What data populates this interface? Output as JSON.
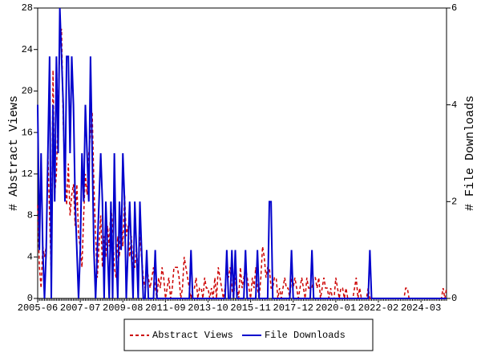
{
  "chart_data": {
    "type": "line",
    "y_label": "# Abstract Views",
    "y2_label": "# File Downloads",
    "categories": [
      "2005-06",
      null,
      null,
      null,
      null,
      null,
      null,
      null,
      null,
      null,
      null,
      null,
      null,
      null,
      null,
      null,
      null,
      null,
      null,
      null,
      null,
      null,
      null,
      null,
      null,
      "2007-07",
      null,
      null,
      null,
      null,
      null,
      null,
      null,
      null,
      null,
      null,
      null,
      null,
      null,
      null,
      null,
      null,
      null,
      null,
      null,
      null,
      null,
      null,
      null,
      null,
      "2009-08",
      null,
      null,
      null,
      null,
      null,
      null,
      null,
      null,
      null,
      null,
      null,
      null,
      null,
      null,
      null,
      null,
      null,
      null,
      null,
      null,
      null,
      null,
      null,
      null,
      "2011-09",
      null,
      null,
      null,
      null,
      null,
      null,
      null,
      null,
      null,
      null,
      null,
      null,
      null,
      null,
      null,
      null,
      null,
      null,
      null,
      null,
      null,
      null,
      null,
      null,
      "2013-10",
      null,
      null,
      null,
      null,
      null,
      null,
      null,
      null,
      null,
      null,
      null,
      null,
      null,
      null,
      null,
      null,
      null,
      null,
      null,
      null,
      null,
      null,
      null,
      null,
      "2015-11",
      null,
      null,
      null,
      null,
      null,
      null,
      null,
      null,
      null,
      null,
      null,
      null,
      null,
      null,
      null,
      null,
      null,
      null,
      null,
      null,
      null,
      null,
      null,
      null,
      "2017-12",
      null,
      null,
      null,
      null,
      null,
      null,
      null,
      null,
      null,
      null,
      null,
      null,
      null,
      null,
      null,
      null,
      null,
      null,
      null,
      null,
      null,
      null,
      null,
      null,
      "2020-01",
      null,
      null,
      null,
      null,
      null,
      null,
      null,
      null,
      null,
      null,
      null,
      null,
      null,
      null,
      null,
      null,
      null,
      null,
      null,
      null,
      null,
      null,
      null,
      null,
      "2022-02",
      null,
      null,
      null,
      null,
      null,
      null,
      null,
      null,
      null,
      null,
      null,
      null,
      null,
      null,
      null,
      null,
      null,
      null,
      null,
      null,
      null,
      null,
      null,
      null,
      "2024-03",
      null,
      null,
      null,
      null,
      null,
      null,
      null,
      null,
      null,
      null,
      null,
      null,
      null,
      null,
      null
    ],
    "series": [
      {
        "name": "Abstract Views",
        "color": "#cc0000",
        "dashed": true,
        "values": [
          9,
          3,
          1,
          5,
          4,
          5,
          14,
          8,
          2,
          22,
          10,
          12,
          18,
          25,
          26,
          17,
          12,
          9,
          13,
          8,
          10,
          11,
          7,
          11,
          6,
          5,
          3,
          8,
          12,
          10,
          14,
          16,
          18,
          11,
          6,
          2,
          5,
          8,
          3,
          6,
          4,
          7,
          5,
          9,
          7,
          3,
          2,
          6,
          4,
          8,
          5,
          10,
          6,
          7,
          4,
          6,
          3,
          3,
          5,
          2,
          6,
          4,
          2,
          1,
          3,
          2,
          1,
          2,
          3,
          1,
          0,
          2,
          1,
          3,
          2,
          0,
          1,
          2,
          0,
          1,
          3,
          3,
          3,
          2,
          0,
          1,
          4,
          3,
          2,
          1,
          0,
          1,
          1,
          2,
          0,
          1,
          1,
          0,
          2,
          1,
          1,
          0,
          1,
          0,
          2,
          0,
          3,
          2,
          1,
          0,
          1,
          3,
          2,
          3,
          1,
          0,
          2,
          1,
          0,
          3,
          1,
          2,
          3,
          2,
          1,
          0,
          2,
          1,
          3,
          1,
          0,
          2,
          5,
          4,
          2,
          3,
          3,
          1,
          1,
          2,
          2,
          0,
          1,
          0,
          1,
          2,
          1,
          1,
          0,
          2,
          1,
          2,
          1,
          0,
          1,
          2,
          1,
          0,
          2,
          1,
          1,
          1,
          2,
          2,
          1,
          2,
          0,
          1,
          2,
          1,
          1,
          0,
          1,
          0,
          0,
          2,
          1,
          0,
          1,
          1,
          0,
          1,
          0,
          0,
          0,
          0,
          1,
          2,
          0,
          1,
          0,
          0,
          0,
          0,
          1,
          0,
          0,
          0,
          0,
          0,
          0,
          0,
          0,
          0,
          0,
          0,
          0,
          0,
          0,
          0,
          0,
          0,
          0,
          0,
          0,
          0,
          1,
          1,
          0,
          0,
          0,
          0,
          0,
          0,
          0,
          0,
          0,
          0,
          0,
          0,
          0,
          0,
          0,
          0,
          0,
          0,
          0,
          0,
          1,
          0,
          1
        ]
      },
      {
        "name": "File Downloads",
        "color": "#0000cc",
        "axis": "y2",
        "values": [
          4,
          1,
          3,
          1,
          0,
          1,
          3,
          5,
          0,
          4,
          2,
          5,
          3,
          6,
          5,
          4,
          2,
          5,
          5,
          3,
          5,
          4,
          2,
          1,
          0,
          1,
          3,
          2,
          4,
          3,
          2,
          5,
          3,
          1,
          0,
          1,
          2,
          3,
          2,
          0,
          2,
          1,
          0,
          2,
          0,
          3,
          1,
          0,
          2,
          1,
          3,
          2,
          0,
          1,
          2,
          1,
          0,
          2,
          1,
          0,
          2,
          1,
          0,
          0,
          1,
          0,
          0,
          0,
          0,
          1,
          0,
          0,
          0,
          0,
          0,
          0,
          0,
          0,
          0,
          0,
          0,
          0,
          0,
          0,
          0,
          0,
          0,
          0,
          0,
          0,
          1,
          0,
          0,
          0,
          0,
          0,
          0,
          0,
          0,
          0,
          0,
          0,
          0,
          0,
          0,
          0,
          0,
          0,
          0,
          0,
          0,
          1,
          0,
          0,
          1,
          0,
          1,
          0,
          0,
          0,
          0,
          0,
          1,
          0,
          0,
          0,
          0,
          0,
          0,
          1,
          0,
          0,
          0,
          0,
          0,
          0,
          2,
          2,
          0,
          0,
          0,
          0,
          0,
          0,
          0,
          0,
          0,
          0,
          0,
          1,
          0,
          0,
          0,
          0,
          0,
          0,
          0,
          0,
          0,
          0,
          0,
          1,
          0,
          0,
          0,
          0,
          0,
          0,
          0,
          0,
          0,
          0,
          0,
          0,
          0,
          0,
          0,
          0,
          0,
          0,
          0,
          0,
          0,
          0,
          0,
          0,
          0,
          0,
          0,
          0,
          0,
          0,
          0,
          0,
          0,
          1,
          0,
          0,
          0,
          0,
          0,
          0,
          0,
          0,
          0,
          0,
          0,
          0,
          0,
          0,
          0,
          0,
          0,
          0,
          0,
          0,
          0,
          0,
          0,
          0,
          0,
          0,
          0,
          0,
          0,
          0,
          0,
          0,
          0,
          0,
          0,
          0,
          0,
          0,
          0,
          0,
          0,
          0,
          0,
          0,
          0
        ]
      }
    ],
    "ylim": [
      0,
      28
    ],
    "yticks": [
      0,
      4,
      8,
      12,
      16,
      20,
      24,
      28
    ],
    "y2lim": [
      0,
      6
    ],
    "y2ticks": [
      0,
      2,
      4,
      6
    ],
    "legend": "bottom"
  }
}
